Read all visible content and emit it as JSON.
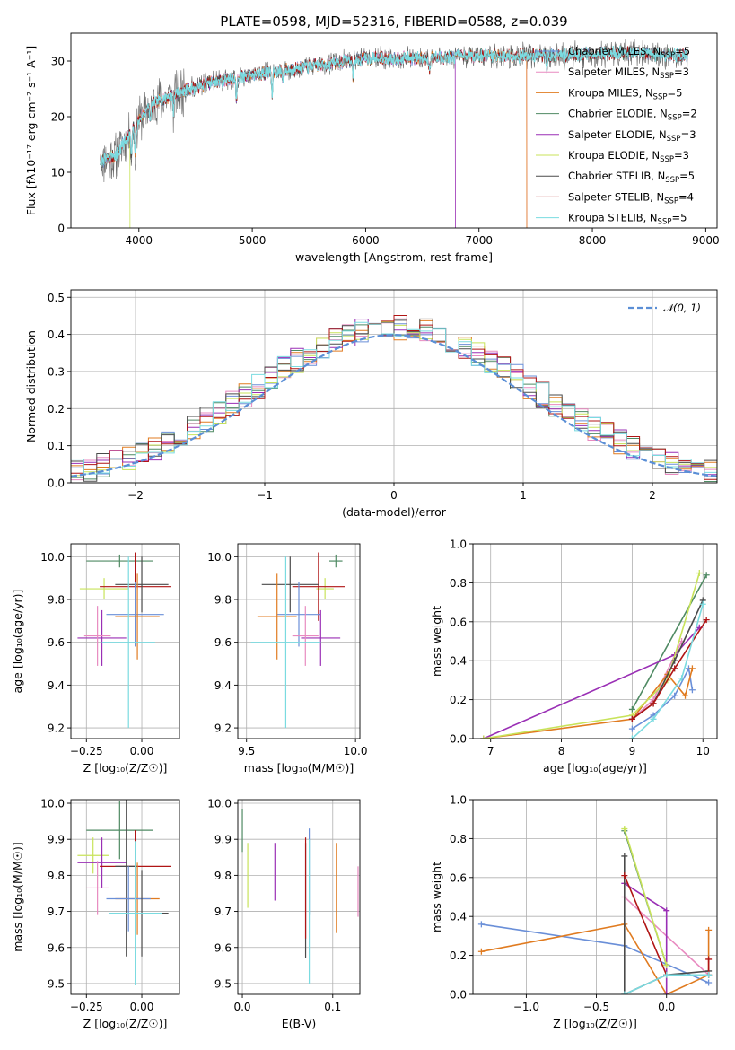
{
  "colors": {
    "Chabrier MILES": "#6a8fd8",
    "Salpeter MILES": "#e88ac0",
    "Kroupa MILES": "#e07b20",
    "Chabrier ELODIE": "#4f8a63",
    "Salpeter ELODIE": "#9a2fb5",
    "Kroupa ELODIE": "#c8e35a",
    "Chabrier STELIB": "#4a4a4a",
    "Salpeter STELIB": "#b01515",
    "Kroupa STELIB": "#7adbe0"
  },
  "chart_data": [
    {
      "id": "spectrum",
      "type": "line",
      "title": "PLATE=0598, MJD=52316, FIBERID=0588, z=0.039",
      "xlabel": "wavelength [Angstrom, rest frame]",
      "ylabel": "Flux [fλ10⁻¹⁷ erg cm⁻² s⁻¹ A⁻¹]",
      "xlim": [
        3400,
        9100
      ],
      "ylim": [
        0,
        35
      ],
      "xticks": [
        4000,
        5000,
        6000,
        7000,
        8000,
        9000
      ],
      "yticks": [
        0,
        10,
        20,
        30
      ],
      "legend": [
        {
          "label": "Chabrier MILES, N",
          "sub": "SSP",
          "tail": "=5",
          "key": "Chabrier MILES"
        },
        {
          "label": "Salpeter MILES, N",
          "sub": "SSP",
          "tail": "=3",
          "key": "Salpeter MILES"
        },
        {
          "label": "Kroupa MILES, N",
          "sub": "SSP",
          "tail": "=5",
          "key": "Kroupa MILES"
        },
        {
          "label": "Chabrier ELODIE, N",
          "sub": "SSP",
          "tail": "=2",
          "key": "Chabrier ELODIE"
        },
        {
          "label": "Salpeter ELODIE, N",
          "sub": "SSP",
          "tail": "=3",
          "key": "Salpeter ELODIE"
        },
        {
          "label": "Kroupa ELODIE, N",
          "sub": "SSP",
          "tail": "=3",
          "key": "Kroupa ELODIE"
        },
        {
          "label": "Chabrier STELIB, N",
          "sub": "SSP",
          "tail": "=5",
          "key": "Chabrier STELIB"
        },
        {
          "label": "Salpeter STELIB, N",
          "sub": "SSP",
          "tail": "=4",
          "key": "Salpeter STELIB"
        },
        {
          "label": "Kroupa STELIB, N",
          "sub": "SSP",
          "tail": "=5",
          "key": "Kroupa STELIB"
        }
      ],
      "continuum": {
        "x": [
          3660,
          3800,
          3950,
          4100,
          4300,
          4600,
          5000,
          5500,
          6000,
          6500,
          7000,
          7400,
          7800,
          8200,
          8800
        ],
        "y": [
          12,
          13,
          18,
          22,
          24,
          26,
          27.5,
          29,
          30.5,
          30.5,
          31,
          31,
          31,
          31.5,
          31
        ]
      },
      "model_cutoffs": {
        "Kroupa ELODIE": 3920,
        "Salpeter ELODIE": 6790,
        "Kroupa MILES": 7420,
        "Salpeter MILES": 7420
      }
    },
    {
      "id": "residuals",
      "type": "histogram",
      "xlabel": "(data-model)/error",
      "ylabel": "Normed distribution",
      "xlim": [
        -2.5,
        2.5
      ],
      "ylim": [
        0,
        0.52
      ],
      "xticks": [
        -2,
        -1,
        0,
        1,
        2
      ],
      "yticks": [
        0.0,
        0.1,
        0.2,
        0.3,
        0.4,
        0.5
      ],
      "reference_legend": "𝒩(0, 1)",
      "bin_width": 0.1
    },
    {
      "id": "age-vs-Z",
      "type": "errorbar",
      "xlabel": "Z [log₁₀(Z/Z☉)]",
      "ylabel": "age  [log₁₀(age/yr)]",
      "xlim": [
        -0.32,
        0.17
      ],
      "ylim": [
        9.15,
        10.06
      ],
      "xticks": [
        -0.25,
        0.0
      ],
      "yticks": [
        9.2,
        9.4,
        9.6,
        9.8,
        10.0
      ],
      "points": [
        {
          "k": "Chabrier ELODIE",
          "x": -0.1,
          "xe": 0.15,
          "y": 9.98,
          "ye": 0.03
        },
        {
          "k": "Kroupa ELODIE",
          "x": -0.17,
          "xe": 0.11,
          "y": 9.85,
          "ye": 0.05
        },
        {
          "k": "Salpeter STELIB",
          "x": -0.03,
          "xe": 0.16,
          "y": 9.86,
          "ye": 0.16
        },
        {
          "k": "Chabrier STELIB",
          "x": 0.0,
          "xe": 0.12,
          "y": 9.87,
          "ye": 0.13
        },
        {
          "k": "Chabrier MILES",
          "x": -0.03,
          "xe": 0.13,
          "y": 9.73,
          "ye": 0.15
        },
        {
          "k": "Kroupa MILES",
          "x": -0.02,
          "xe": 0.1,
          "y": 9.72,
          "ye": 0.2
        },
        {
          "k": "Salpeter ELODIE",
          "x": -0.18,
          "xe": 0.11,
          "y": 9.62,
          "ye": 0.13
        },
        {
          "k": "Salpeter MILES",
          "x": -0.2,
          "xe": 0.06,
          "y": 9.63,
          "ye": 0.14
        },
        {
          "k": "Kroupa STELIB",
          "x": -0.06,
          "xe": 0.12,
          "y": 9.6,
          "ye": 0.4
        }
      ]
    },
    {
      "id": "age-vs-mass",
      "type": "errorbar",
      "xlabel": "mass [log₁₀(M/M☉)]",
      "xlim": [
        9.46,
        10.02
      ],
      "ylim": [
        9.15,
        10.06
      ],
      "xticks": [
        9.5,
        10.0
      ],
      "yticks": [
        9.2,
        9.4,
        9.6,
        9.8,
        10.0
      ],
      "points": [
        {
          "k": "Chabrier ELODIE",
          "x": 9.91,
          "xe": 0.03,
          "y": 9.98,
          "ye": 0.03
        },
        {
          "k": "Kroupa ELODIE",
          "x": 9.86,
          "xe": 0.04,
          "y": 9.85,
          "ye": 0.05
        },
        {
          "k": "Salpeter STELIB",
          "x": 9.83,
          "xe": 0.12,
          "y": 9.86,
          "ye": 0.16
        },
        {
          "k": "Chabrier STELIB",
          "x": 9.7,
          "xe": 0.13,
          "y": 9.87,
          "ye": 0.13
        },
        {
          "k": "Chabrier MILES",
          "x": 9.74,
          "xe": 0.1,
          "y": 9.73,
          "ye": 0.15
        },
        {
          "k": "Kroupa MILES",
          "x": 9.64,
          "xe": 0.09,
          "y": 9.72,
          "ye": 0.2
        },
        {
          "k": "Salpeter ELODIE",
          "x": 9.84,
          "xe": 0.09,
          "y": 9.62,
          "ye": 0.13
        },
        {
          "k": "Salpeter MILES",
          "x": 9.77,
          "xe": 0.06,
          "y": 9.63,
          "ye": 0.14
        },
        {
          "k": "Kroupa STELIB",
          "x": 9.68,
          "xe": 0.16,
          "y": 9.6,
          "ye": 0.4
        }
      ]
    },
    {
      "id": "weight-vs-age",
      "type": "line",
      "xlabel": "age  [log₁₀(age/yr)]",
      "ylabel": "mass weight",
      "xlim": [
        6.75,
        10.2
      ],
      "ylim": [
        0,
        1.0
      ],
      "xticks": [
        7,
        8,
        9,
        10
      ],
      "yticks": [
        0.0,
        0.2,
        0.4,
        0.6,
        0.8,
        1.0
      ],
      "series": [
        {
          "k": "Chabrier MILES",
          "x": [
            9.0,
            9.3,
            9.6,
            9.8,
            9.85
          ],
          "y": [
            0.05,
            0.12,
            0.22,
            0.36,
            0.25
          ]
        },
        {
          "k": "Salpeter MILES",
          "x": [
            9.0,
            9.3,
            9.7
          ],
          "y": [
            0.1,
            0.2,
            0.5
          ]
        },
        {
          "k": "Kroupa MILES",
          "x": [
            6.9,
            9.0,
            9.5,
            9.75,
            9.85
          ],
          "y": [
            0.0,
            0.1,
            0.33,
            0.22,
            0.36
          ]
        },
        {
          "k": "Chabrier ELODIE",
          "x": [
            9.0,
            10.05
          ],
          "y": [
            0.15,
            0.84
          ]
        },
        {
          "k": "Salpeter ELODIE",
          "x": [
            6.9,
            9.6,
            9.95
          ],
          "y": [
            0.0,
            0.43,
            0.57
          ]
        },
        {
          "k": "Kroupa ELODIE",
          "x": [
            6.9,
            9.0,
            9.5,
            9.95
          ],
          "y": [
            0.0,
            0.12,
            0.3,
            0.85
          ]
        },
        {
          "k": "Chabrier STELIB",
          "x": [
            9.0,
            9.3,
            9.6,
            10.0
          ],
          "y": [
            0.1,
            0.18,
            0.4,
            0.71
          ]
        },
        {
          "k": "Salpeter STELIB",
          "x": [
            9.0,
            9.3,
            9.6,
            10.05
          ],
          "y": [
            0.1,
            0.18,
            0.36,
            0.61
          ]
        },
        {
          "k": "Kroupa STELIB",
          "x": [
            9.0,
            9.3,
            9.7,
            10.0
          ],
          "y": [
            0.0,
            0.1,
            0.31,
            0.69
          ]
        }
      ]
    },
    {
      "id": "mass-vs-Z",
      "type": "errorbar",
      "xlabel": "Z [log₁₀(Z/Z☉)]",
      "ylabel": "mass [log₁₀(M/M☉)]",
      "xlim": [
        -0.32,
        0.17
      ],
      "ylim": [
        9.47,
        10.01
      ],
      "xticks": [
        -0.25,
        0.0
      ],
      "yticks": [
        9.5,
        9.6,
        9.7,
        9.8,
        9.9,
        10.0
      ],
      "points": [
        {
          "k": "Chabrier ELODIE",
          "x": -0.1,
          "xe": 0.15,
          "y": 9.925,
          "ye": 0.08
        },
        {
          "k": "Kroupa ELODIE",
          "x": -0.22,
          "xe": 0.07,
          "y": 9.855,
          "ye": 0.05
        },
        {
          "k": "Salpeter ELODIE",
          "x": -0.18,
          "xe": 0.11,
          "y": 9.835,
          "ye": 0.07
        },
        {
          "k": "Salpeter STELIB",
          "x": -0.03,
          "xe": 0.16,
          "y": 9.825,
          "ye": 0.1
        },
        {
          "k": "Chabrier STELIB",
          "x": -0.07,
          "xe": 0.05,
          "y": 9.825,
          "ye": 0.25
        },
        {
          "k": "Salpeter MILES",
          "x": -0.2,
          "xe": 0.05,
          "y": 9.765,
          "ye": 0.075
        },
        {
          "k": "Kroupa MILES",
          "x": -0.02,
          "xe": 0.1,
          "y": 9.735,
          "ye": 0.1
        },
        {
          "k": "Chabrier MILES",
          "x": -0.06,
          "xe": 0.1,
          "y": 9.735,
          "ye": 0.09
        },
        {
          "k": "Chabrier STELIB",
          "x": 0.0,
          "xe": 0.12,
          "y": 9.695,
          "ye": 0.12
        },
        {
          "k": "Kroupa STELIB",
          "x": -0.03,
          "xe": 0.12,
          "y": 9.695,
          "ye": 0.2
        }
      ]
    },
    {
      "id": "mass-vs-EBV",
      "type": "errorbar",
      "xlabel": "E(B-V)",
      "xlim": [
        -0.005,
        0.13
      ],
      "ylim": [
        9.47,
        10.01
      ],
      "xticks": [
        0.0,
        0.1
      ],
      "yticks": [
        9.5,
        9.6,
        9.7,
        9.8,
        9.9,
        10.0
      ],
      "points": [
        {
          "k": "Chabrier ELODIE",
          "x": 0.0,
          "xe": 0.0,
          "y": 9.925,
          "ye": 0.06
        },
        {
          "k": "Kroupa ELODIE",
          "x": 0.006,
          "xe": 0.0,
          "y": 9.8,
          "ye": 0.09
        },
        {
          "k": "Salpeter ELODIE",
          "x": 0.036,
          "xe": 0.0,
          "y": 9.81,
          "ye": 0.08
        },
        {
          "k": "Chabrier STELIB",
          "x": 0.07,
          "xe": 0.0,
          "y": 9.73,
          "ye": 0.16
        },
        {
          "k": "Salpeter STELIB",
          "x": 0.07,
          "xe": 0.0,
          "y": 9.765,
          "ye": 0.14
        },
        {
          "k": "Chabrier MILES",
          "x": 0.074,
          "xe": 0.0,
          "y": 9.81,
          "ye": 0.12
        },
        {
          "k": "Kroupa STELIB",
          "x": 0.074,
          "xe": 0.0,
          "y": 9.7,
          "ye": 0.2
        },
        {
          "k": "Kroupa MILES",
          "x": 0.104,
          "xe": 0.0,
          "y": 9.765,
          "ye": 0.125
        },
        {
          "k": "Salpeter MILES",
          "x": 0.128,
          "xe": 0.0,
          "y": 9.755,
          "ye": 0.07
        }
      ]
    },
    {
      "id": "weight-vs-Z",
      "type": "line",
      "xlabel": "Z [log₁₀(Z/Z☉)]",
      "ylabel": "mass weight",
      "xlim": [
        -1.38,
        0.36
      ],
      "ylim": [
        0,
        1.0
      ],
      "xticks": [
        -1.0,
        -0.5,
        0.0
      ],
      "yticks": [
        0.0,
        0.2,
        0.4,
        0.6,
        0.8,
        1.0
      ],
      "series": [
        {
          "k": "Chabrier MILES",
          "x": [
            -1.32,
            -0.3,
            0.3
          ],
          "y": [
            0.36,
            0.25,
            0.06
          ]
        },
        {
          "k": "Salpeter MILES",
          "x": [
            -0.3,
            0.3
          ],
          "y": [
            0.5,
            0.1
          ]
        },
        {
          "k": "Kroupa MILES",
          "x": [
            -1.32,
            -0.3,
            0.0,
            0.3,
            0.3
          ],
          "y": [
            0.22,
            0.36,
            0.0,
            0.1,
            0.33
          ]
        },
        {
          "k": "Chabrier ELODIE",
          "x": [
            -0.3,
            0.0
          ],
          "y": [
            0.84,
            0.15
          ]
        },
        {
          "k": "Salpeter ELODIE",
          "x": [
            -0.3,
            0.0,
            0.0
          ],
          "y": [
            0.57,
            0.43,
            0.0
          ]
        },
        {
          "k": "Kroupa ELODIE",
          "x": [
            -0.3,
            0.0
          ],
          "y": [
            0.85,
            0.15
          ]
        },
        {
          "k": "Chabrier STELIB",
          "x": [
            -0.3,
            -0.3,
            0.0,
            0.3
          ],
          "y": [
            0.71,
            0.0,
            0.1,
            0.12
          ]
        },
        {
          "k": "Salpeter STELIB",
          "x": [
            -0.3,
            0.0,
            0.3,
            0.3
          ],
          "y": [
            0.61,
            0.1,
            0.1,
            0.18
          ]
        },
        {
          "k": "Kroupa STELIB",
          "x": [
            -0.3,
            0.0,
            0.3
          ],
          "y": [
            0.0,
            0.1,
            0.1
          ]
        }
      ]
    }
  ]
}
